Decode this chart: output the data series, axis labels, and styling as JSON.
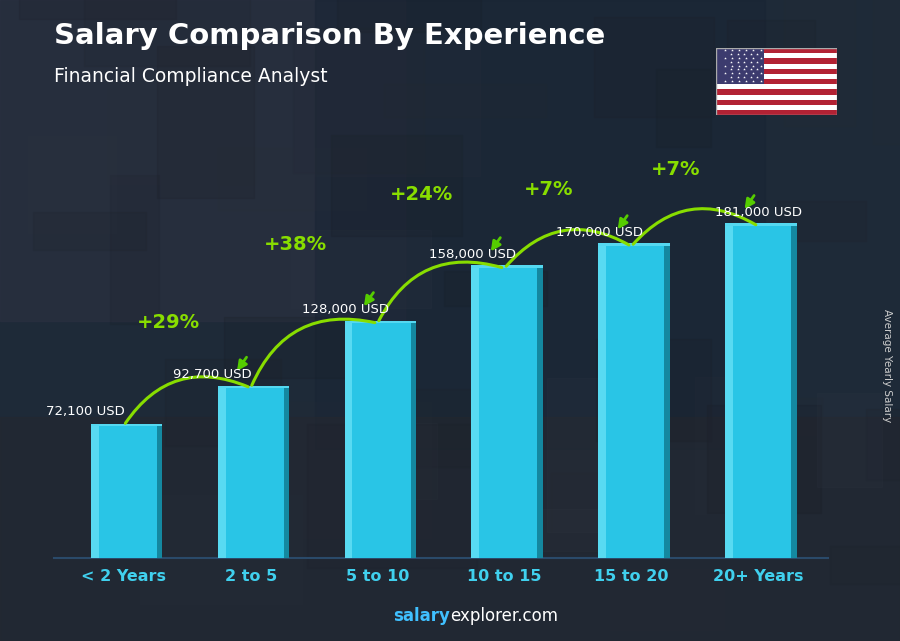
{
  "title": "Salary Comparison By Experience",
  "subtitle": "Financial Compliance Analyst",
  "ylabel": "Average Yearly Salary",
  "footer_bold": "salary",
  "footer_normal": "explorer.com",
  "categories": [
    "< 2 Years",
    "2 to 5",
    "5 to 10",
    "10 to 15",
    "15 to 20",
    "20+ Years"
  ],
  "values": [
    72100,
    92700,
    128000,
    158000,
    170000,
    181000
  ],
  "labels": [
    "72,100 USD",
    "92,700 USD",
    "128,000 USD",
    "158,000 USD",
    "170,000 USD",
    "181,000 USD"
  ],
  "pct_changes": [
    "+29%",
    "+38%",
    "+24%",
    "+7%",
    "+7%"
  ],
  "bar_face_color": "#29c5e6",
  "bar_side_color": "#1488a0",
  "bar_top_color": "#55d8f0",
  "bar_highlight_color": "#6de4f8",
  "bg_color": "#1a2535",
  "title_color": "#ffffff",
  "subtitle_color": "#ffffff",
  "label_color": "#ffffff",
  "pct_color": "#aaee00",
  "xticklabel_color": "#40d0ee",
  "footer_bold_color": "#40c0ff",
  "footer_normal_color": "#ffffff",
  "ylabel_color": "#cccccc",
  "arc_color": "#88dd00",
  "arrow_color": "#55cc00"
}
